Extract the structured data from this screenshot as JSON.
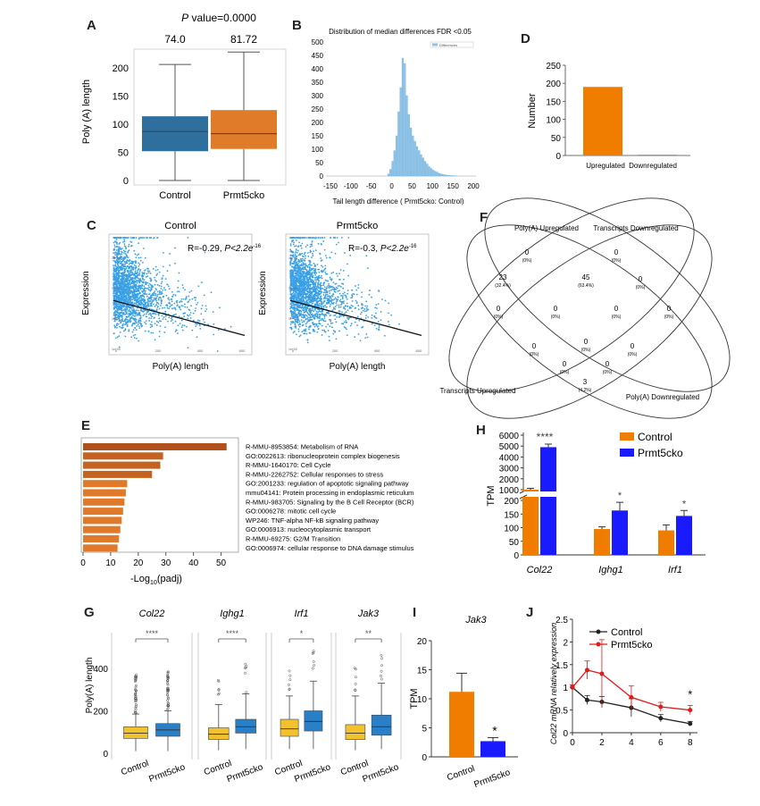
{
  "panels": {
    "A": {
      "letter": "A",
      "p_value_prefix": "P",
      "p_value_text": " value=0.0000",
      "ylabel": "Poly (A) length",
      "yticks": [
        0,
        50,
        100,
        150,
        200
      ],
      "ylim": [
        0,
        230
      ],
      "groups": [
        {
          "name": "Control",
          "mean_label": "74.0",
          "min": 0,
          "q1": 52,
          "median": 87,
          "q3": 114,
          "max": 206,
          "color": "#2e6f9e"
        },
        {
          "name": "Prmt5cko",
          "mean_label": "81.72",
          "min": 0,
          "q1": 56,
          "median": 83,
          "q3": 125,
          "max": 228,
          "color": "#e07b29"
        }
      ]
    },
    "B": {
      "letter": "B",
      "title": "Distribution of median differences FDR <0.05",
      "legend": "Differences",
      "xlabel": "Tail length difference ( Prmt5cko: Control)",
      "xticks": [
        -150,
        -100,
        -50,
        0,
        50,
        100,
        150,
        200
      ],
      "yticks": [
        0,
        50,
        100,
        150,
        200,
        250,
        300,
        350,
        400,
        450,
        500
      ],
      "ylim": [
        0,
        500
      ],
      "bin_width": 5,
      "bins_start": -10,
      "counts": [
        8,
        25,
        55,
        95,
        150,
        240,
        330,
        440,
        420,
        300,
        230,
        180,
        150,
        130,
        110,
        95,
        80,
        68,
        55,
        45,
        35,
        28,
        22,
        18,
        14,
        10,
        8,
        6,
        4,
        3,
        2,
        2,
        1,
        1
      ]
    },
    "C": {
      "letter": "C",
      "titles": [
        "Control",
        "Prmt5cko"
      ],
      "stats_prefix": [
        "R=-0.29, ",
        "R=-0.3, "
      ],
      "stats_p": [
        "P<2.2e",
        "P<2.2e"
      ],
      "stats_exp": [
        "-16",
        "-16"
      ],
      "xlabel": "Poly(A) length",
      "ylabel": "Expression",
      "xticks": [
        0,
        200,
        400,
        600
      ],
      "yticks": [
        "1e+03",
        "1e+02",
        "1e+01",
        "1e+00"
      ],
      "color": "#3aa0e6"
    },
    "D": {
      "letter": "D",
      "ylabel": "Number",
      "yticks": [
        0,
        50,
        100,
        150,
        200,
        250
      ],
      "ylim": [
        0,
        250
      ],
      "categories": [
        "Upregulated",
        "Downregulated"
      ],
      "values": [
        190,
        2
      ],
      "colors": [
        "#f07d00",
        "#888888"
      ]
    },
    "E": {
      "letter": "E",
      "xlabel_prefix": "-Log",
      "xlabel_sub": "10",
      "xlabel_suffix": "(padj)",
      "xticks": [
        0,
        10,
        20,
        30,
        40,
        50
      ],
      "xlim": [
        0,
        55
      ],
      "terms": [
        {
          "label": "R-MMU-8953854: Metabolism of RNA",
          "value": 52
        },
        {
          "label": "GO:0022613: ribonucleoprotein complex biogenesis",
          "value": 29
        },
        {
          "label": "R-MMU-1640170: Cell Cycle",
          "value": 28
        },
        {
          "label": "R-MMU-2262752: Cellular responses to stress",
          "value": 25
        },
        {
          "label": "GO:2001233: regulation of apoptotic signaling pathway",
          "value": 16
        },
        {
          "label": "mmu04141: Protein processing in endoplasmic reticulum",
          "value": 15.5
        },
        {
          "label": "R-MMU-983705: Signaling by the B Cell Receptor (BCR)",
          "value": 15
        },
        {
          "label": "GO:0006278: mitotic cell cycle",
          "value": 14.5
        },
        {
          "label": "WP246: TNF-alpha NF-kB signaling pathway",
          "value": 14
        },
        {
          "label": "GO:0006913: nucleocytoplasmic transport",
          "value": 13.5
        },
        {
          "label": "R-MMU-69275: G2/M Transition",
          "value": 13
        },
        {
          "label": "GO:0006974: cellular response to DNA damage stimulus",
          "value": 12.5
        }
      ]
    },
    "F": {
      "letter": "F",
      "set_labels": [
        "Poly(A) Upregulated",
        "Transcripts Downregulated",
        "Transcripts Upregulated",
        "Poly(A) Downregulated"
      ],
      "regions": [
        {
          "count": "0",
          "pct": "(0%)"
        },
        {
          "count": "0",
          "pct": "(0%)"
        },
        {
          "count": "23",
          "pct": "(32.4%)"
        },
        {
          "count": "45",
          "pct": "(63.4%)"
        },
        {
          "count": "0",
          "pct": "(0%)"
        },
        {
          "count": "0",
          "pct": "(0%)"
        },
        {
          "count": "0",
          "pct": "(0%)"
        },
        {
          "count": "0",
          "pct": "(0%)"
        },
        {
          "count": "0",
          "pct": "(0%)"
        },
        {
          "count": "0",
          "pct": "(0%)"
        },
        {
          "count": "0",
          "pct": "(0%)"
        },
        {
          "count": "0",
          "pct": "(0%)"
        },
        {
          "count": "0",
          "pct": "(0%)"
        },
        {
          "count": "0",
          "pct": "(0%)"
        },
        {
          "count": "3",
          "pct": "(4.2%)"
        }
      ]
    },
    "G": {
      "letter": "G",
      "ylabel": "Poly(A) length",
      "yticks": [
        0,
        200,
        400
      ],
      "ylim": [
        0,
        560
      ],
      "groups": [
        "Control",
        "Prmt5cko"
      ],
      "colors": [
        "#f2c12e",
        "#2a7fc9"
      ],
      "genes": [
        {
          "name": "Col22",
          "sig": "****",
          "boxes": [
            {
              "min": 10,
              "q1": 70,
              "median": 95,
              "q3": 125,
              "max": 185
            },
            {
              "min": 10,
              "q1": 80,
              "median": 110,
              "q3": 140,
              "max": 200
            }
          ]
        },
        {
          "name": "Ighg1",
          "sig": "****",
          "boxes": [
            {
              "min": 15,
              "q1": 65,
              "median": 90,
              "q3": 120,
              "max": 230
            },
            {
              "min": 20,
              "q1": 95,
              "median": 125,
              "q3": 160,
              "max": 280
            }
          ]
        },
        {
          "name": "Irf1",
          "sig": "*",
          "boxes": [
            {
              "min": 20,
              "q1": 80,
              "median": 115,
              "q3": 160,
              "max": 270
            },
            {
              "min": 20,
              "q1": 105,
              "median": 150,
              "q3": 200,
              "max": 340
            }
          ]
        },
        {
          "name": "Jak3",
          "sig": "**",
          "boxes": [
            {
              "min": 15,
              "q1": 65,
              "median": 95,
              "q3": 135,
              "max": 270
            },
            {
              "min": 20,
              "q1": 85,
              "median": 125,
              "q3": 180,
              "max": 330
            }
          ]
        }
      ]
    },
    "H": {
      "letter": "H",
      "ylabel": "TPM",
      "yticks_low": [
        0,
        50,
        100,
        150,
        200
      ],
      "yticks_high": [
        1000,
        2000,
        3000,
        4000,
        5000,
        6000
      ],
      "legend": [
        "Control",
        "Prmt5cko"
      ],
      "colors": [
        "#f07d00",
        "#1a1aff"
      ],
      "genes": [
        "Col22",
        "Ighg1",
        "Irf1"
      ],
      "control": [
        1000,
        95,
        90
      ],
      "control_err": [
        120,
        8,
        20
      ],
      "prmt5cko": [
        4900,
        163,
        143
      ],
      "prmt5cko_err": [
        280,
        30,
        20
      ],
      "sig": [
        "****",
        "*",
        "*"
      ]
    },
    "I": {
      "letter": "I",
      "title": "Jak3",
      "ylabel": "TPM",
      "yticks": [
        0,
        5,
        10,
        15,
        20
      ],
      "ylim": [
        0,
        20
      ],
      "categories": [
        "Control",
        "Prmt5cko"
      ],
      "values": [
        11.2,
        2.7
      ],
      "errors": [
        3.2,
        0.6
      ],
      "colors": [
        "#f07d00",
        "#1a1aff"
      ],
      "sig": "*"
    },
    "J": {
      "letter": "J",
      "ylabel": "Col22 mRNA relatively expression",
      "legend": [
        "Control",
        "Prmt5cko"
      ],
      "colors": [
        "#222222",
        "#e01b1b"
      ],
      "xticks": [
        0,
        2,
        4,
        6,
        8
      ],
      "yticks": [
        0,
        0.5,
        1,
        1.5,
        2,
        2.5
      ],
      "xlim": [
        0,
        8.5
      ],
      "ylim": [
        0,
        2.5
      ],
      "x": [
        0,
        1,
        2,
        4,
        6,
        8
      ],
      "control": [
        1.0,
        0.72,
        0.68,
        0.55,
        0.32,
        0.2
      ],
      "control_err": [
        0.05,
        0.1,
        0.12,
        0.2,
        0.08,
        0.05
      ],
      "prmt5cko": [
        1.0,
        1.38,
        1.3,
        0.78,
        0.57,
        0.5
      ],
      "prmt5cko_err": [
        0.05,
        0.2,
        0.75,
        0.25,
        0.1,
        0.1
      ],
      "sig": "*"
    }
  },
  "chart_data": [
    {
      "panel": "A",
      "type": "box",
      "title": "P value=0.0000",
      "categories": [
        "Control",
        "Prmt5cko"
      ],
      "ylabel": "Poly (A) length",
      "ylim": [
        0,
        230
      ]
    },
    {
      "panel": "B",
      "type": "bar",
      "title": "Distribution of median differences FDR <0.05",
      "xlabel": "Tail length difference ( Prmt5cko: Control)",
      "ylim": [
        0,
        500
      ]
    },
    {
      "panel": "C",
      "type": "scatter",
      "titles": [
        "Control",
        "Prmt5cko"
      ],
      "xlabel": "Poly(A) length",
      "ylabel": "Expression"
    },
    {
      "panel": "D",
      "type": "bar",
      "categories": [
        "Upregulated",
        "Downregulated"
      ],
      "values": [
        190,
        2
      ],
      "ylabel": "Number",
      "ylim": [
        0,
        250
      ]
    },
    {
      "panel": "E",
      "type": "bar",
      "xlabel": "-Log10(padj)"
    },
    {
      "panel": "H",
      "type": "bar",
      "categories": [
        "Col22",
        "Ighg1",
        "Irf1"
      ],
      "series": [
        {
          "name": "Control",
          "values": [
            1000,
            95,
            90
          ]
        },
        {
          "name": "Prmt5cko",
          "values": [
            4900,
            163,
            143
          ]
        }
      ],
      "ylabel": "TPM"
    },
    {
      "panel": "I",
      "type": "bar",
      "title": "Jak3",
      "categories": [
        "Control",
        "Prmt5cko"
      ],
      "values": [
        11.2,
        2.7
      ],
      "ylabel": "TPM",
      "ylim": [
        0,
        20
      ]
    },
    {
      "panel": "J",
      "type": "line",
      "x": [
        0,
        1,
        2,
        4,
        6,
        8
      ],
      "series": [
        {
          "name": "Control",
          "values": [
            1.0,
            0.72,
            0.68,
            0.55,
            0.32,
            0.2
          ]
        },
        {
          "name": "Prmt5cko",
          "values": [
            1.0,
            1.38,
            1.3,
            0.78,
            0.57,
            0.5
          ]
        }
      ],
      "ylabel": "Col22 mRNA relatively expression",
      "ylim": [
        0,
        2.5
      ]
    }
  ]
}
